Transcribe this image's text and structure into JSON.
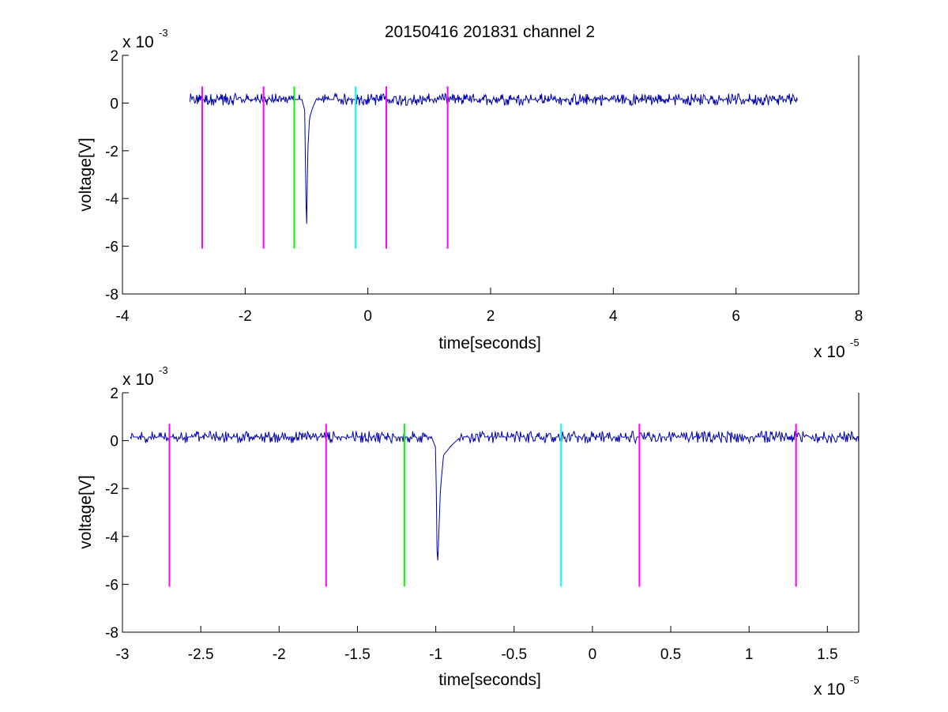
{
  "figure": {
    "title": "20150416 201831 channel 2",
    "background": "#ffffff"
  },
  "chart_data": [
    {
      "type": "line",
      "title": "20150416 201831 channel 2",
      "xlabel": "time[seconds]",
      "ylabel": "voltage[V]",
      "x_multiplier_label": "x 10",
      "x_multiplier_exp": "-5",
      "y_multiplier_label": "x 10",
      "y_multiplier_exp": "-3",
      "xlim": [
        -4,
        8
      ],
      "ylim": [
        -8,
        2
      ],
      "xticks": [
        -4,
        -2,
        0,
        2,
        4,
        6,
        8
      ],
      "xtick_labels": [
        "-4",
        "-2",
        "0",
        "2",
        "4",
        "6",
        "8"
      ],
      "yticks": [
        -8,
        -6,
        -4,
        -2,
        0,
        2
      ],
      "ytick_labels": [
        "-8",
        "-6",
        "-4",
        "-2",
        "0",
        "2"
      ],
      "grid": false,
      "signal": {
        "color": "#0000aa",
        "x_start": -2.9,
        "x_end": 7.0,
        "baseline": 0.15,
        "noise_amplitude": 0.25,
        "pulse": [
          [
            -1.08,
            0.2
          ],
          [
            -1.03,
            -0.3
          ],
          [
            -1.0,
            -5.6
          ],
          [
            -0.98,
            -2.0
          ],
          [
            -0.95,
            -0.6
          ],
          [
            -0.9,
            -0.2
          ],
          [
            -0.85,
            0.1
          ]
        ]
      },
      "markers": [
        {
          "x": -2.7,
          "y_top": 0.7,
          "y_bottom": -6.1,
          "color": "#ff00ff"
        },
        {
          "x": -1.7,
          "y_top": 0.7,
          "y_bottom": -6.1,
          "color": "#ff00ff"
        },
        {
          "x": -1.2,
          "y_top": 0.7,
          "y_bottom": -6.1,
          "color": "#00ff00"
        },
        {
          "x": -0.2,
          "y_top": 0.7,
          "y_bottom": -6.1,
          "color": "#00ffff"
        },
        {
          "x": 0.3,
          "y_top": 0.7,
          "y_bottom": -6.1,
          "color": "#ff00ff"
        },
        {
          "x": 1.3,
          "y_top": 0.7,
          "y_bottom": -6.1,
          "color": "#ff00ff"
        }
      ]
    },
    {
      "type": "line",
      "xlabel": "time[seconds]",
      "ylabel": "voltage[V]",
      "x_multiplier_label": "x 10",
      "x_multiplier_exp": "-5",
      "y_multiplier_label": "x 10",
      "y_multiplier_exp": "-3",
      "xlim": [
        -3,
        1.7
      ],
      "ylim": [
        -8,
        2
      ],
      "xticks": [
        -3,
        -2.5,
        -2,
        -1.5,
        -1,
        -0.5,
        0,
        0.5,
        1,
        1.5
      ],
      "xtick_labels": [
        "-3",
        "-2.5",
        "-2",
        "-1.5",
        "-1",
        "-0.5",
        "0",
        "0.5",
        "1",
        "1.5"
      ],
      "yticks": [
        -8,
        -6,
        -4,
        -2,
        0,
        2
      ],
      "ytick_labels": [
        "-8",
        "-6",
        "-4",
        "-2",
        "0",
        "2"
      ],
      "grid": false,
      "signal": {
        "color": "#0000aa",
        "x_start": -2.95,
        "x_end": 1.7,
        "baseline": 0.15,
        "noise_amplitude": 0.25,
        "pulse": [
          [
            -1.03,
            0.2
          ],
          [
            -1.0,
            -0.3
          ],
          [
            -0.99,
            -5.6
          ],
          [
            -0.97,
            -2.0
          ],
          [
            -0.95,
            -0.6
          ],
          [
            -0.9,
            -0.2
          ],
          [
            -0.85,
            0.1
          ]
        ]
      },
      "markers": [
        {
          "x": -2.7,
          "y_top": 0.7,
          "y_bottom": -6.1,
          "color": "#ff00ff"
        },
        {
          "x": -1.7,
          "y_top": 0.7,
          "y_bottom": -6.1,
          "color": "#ff00ff"
        },
        {
          "x": -1.2,
          "y_top": 0.7,
          "y_bottom": -6.1,
          "color": "#00ff00"
        },
        {
          "x": -0.2,
          "y_top": 0.7,
          "y_bottom": -6.1,
          "color": "#00ffff"
        },
        {
          "x": 0.3,
          "y_top": 0.7,
          "y_bottom": -6.1,
          "color": "#ff00ff"
        },
        {
          "x": 1.3,
          "y_top": 0.7,
          "y_bottom": -6.1,
          "color": "#ff00ff"
        }
      ]
    }
  ]
}
